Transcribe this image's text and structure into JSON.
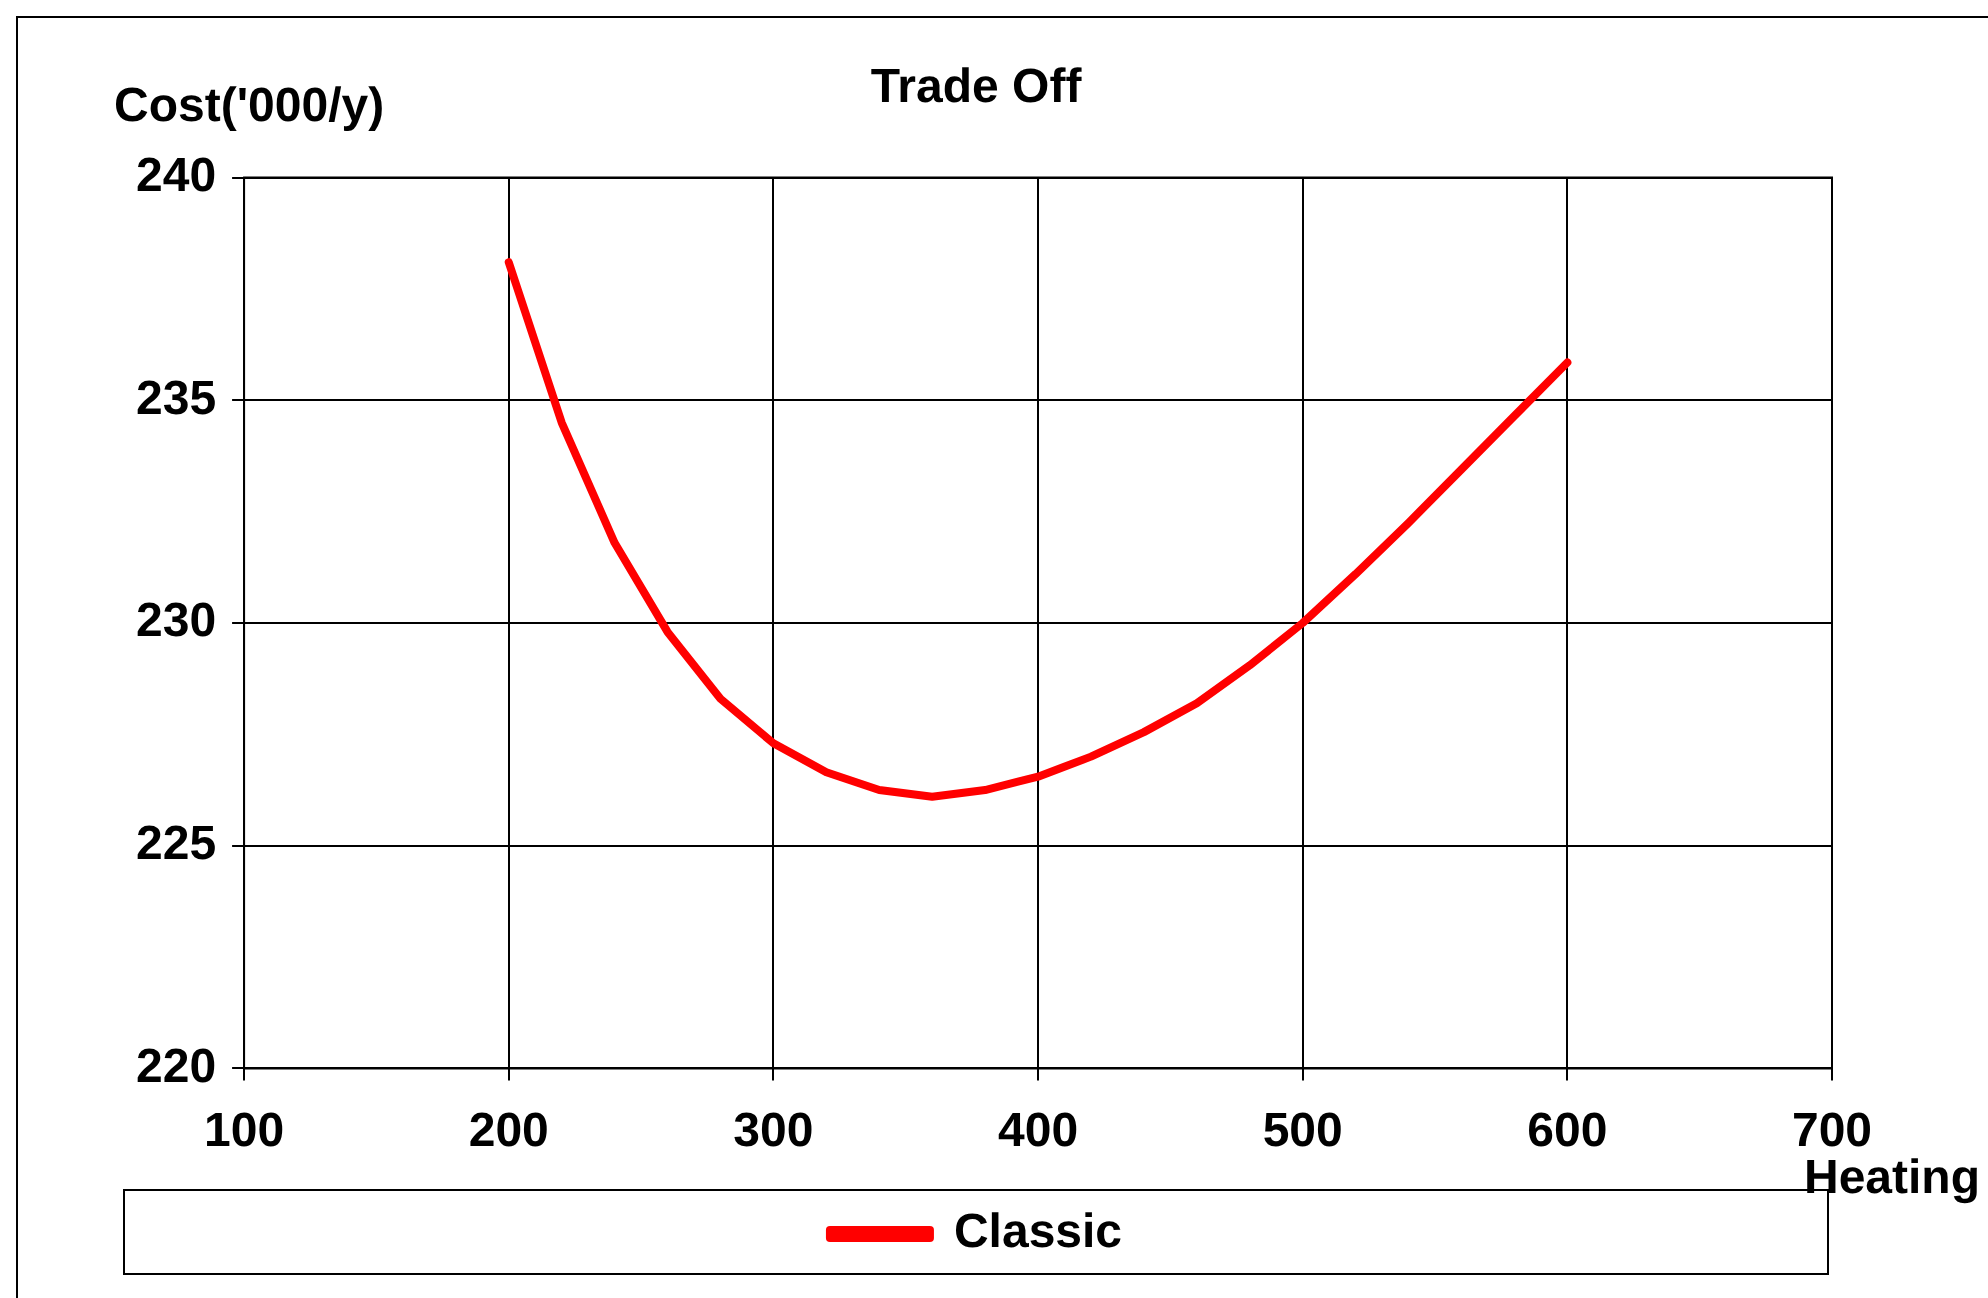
{
  "chart_data": {
    "type": "line",
    "title": "Trade Off",
    "xlabel": "Heating",
    "ylabel": "Cost('000/y)",
    "x": [
      200,
      220,
      240,
      260,
      280,
      300,
      320,
      340,
      360,
      380,
      400,
      420,
      440,
      460,
      480,
      500,
      520,
      540,
      560,
      580,
      600
    ],
    "series": [
      {
        "name": "Classic",
        "color": "#ff0000",
        "values": [
          238.1,
          234.5,
          231.8,
          229.8,
          228.3,
          227.3,
          226.65,
          226.25,
          226.1,
          226.25,
          226.55,
          227.0,
          227.55,
          228.2,
          229.05,
          230.0,
          231.1,
          232.25,
          233.45,
          234.65,
          235.85
        ]
      }
    ],
    "xlim": [
      100,
      700
    ],
    "xticks": [
      100,
      200,
      300,
      400,
      500,
      600,
      700
    ],
    "ylim": [
      220,
      240
    ],
    "yticks": [
      220,
      225,
      230,
      235,
      240
    ],
    "grid": true,
    "legend": "bottom",
    "marker": "none",
    "line_style": "solid"
  }
}
